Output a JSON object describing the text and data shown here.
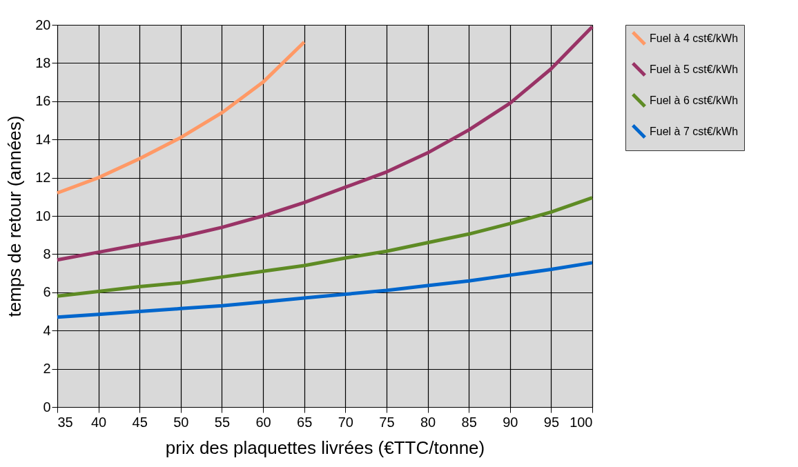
{
  "chart_data": {
    "type": "line",
    "xlabel": "prix des plaquettes livrées (€TTC/tonne)",
    "ylabel": "temps de retour (années)",
    "x": [
      35,
      40,
      45,
      50,
      55,
      60,
      65,
      70,
      75,
      80,
      85,
      90,
      95,
      100
    ],
    "series": [
      {
        "name": "Fuel à 4 cst€/kWh",
        "color": "#ff9966",
        "values": [
          11.2,
          12.0,
          13.0,
          14.1,
          15.4,
          17.0,
          19.1,
          null,
          null,
          null,
          null,
          null,
          null,
          null
        ]
      },
      {
        "name": "Fuel à 5 cst€/kWh",
        "color": "#993366",
        "values": [
          7.7,
          8.1,
          8.5,
          8.9,
          9.4,
          10.0,
          10.7,
          11.5,
          12.3,
          13.3,
          14.5,
          15.9,
          17.7,
          19.9
        ]
      },
      {
        "name": "Fuel à 6 cst€/kWh",
        "color": "#5e8b24",
        "values": [
          5.8,
          6.05,
          6.3,
          6.5,
          6.8,
          7.1,
          7.4,
          7.8,
          8.15,
          8.6,
          9.05,
          9.6,
          10.2,
          10.95
        ]
      },
      {
        "name": "Fuel à 7 cst€/kWh",
        "color": "#0066cc",
        "values": [
          4.7,
          4.85,
          5.0,
          5.15,
          5.3,
          5.5,
          5.7,
          5.9,
          6.1,
          6.35,
          6.6,
          6.9,
          7.2,
          7.55
        ]
      }
    ],
    "xlim": [
      35,
      100
    ],
    "xticks": [
      35,
      40,
      45,
      50,
      55,
      60,
      65,
      70,
      75,
      80,
      85,
      90,
      95,
      100
    ],
    "ylim": [
      0,
      20
    ],
    "yticks": [
      0,
      2,
      4,
      6,
      8,
      10,
      12,
      14,
      16,
      18,
      20
    ],
    "grid": true,
    "legend": "right",
    "marker": "none",
    "line_style": "solid"
  }
}
